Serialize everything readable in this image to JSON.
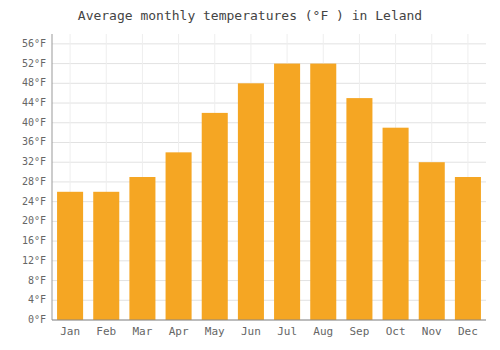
{
  "chart_data": {
    "type": "bar",
    "title": "Average monthly temperatures (°F ) in Leland",
    "categories": [
      "Jan",
      "Feb",
      "Mar",
      "Apr",
      "May",
      "Jun",
      "Jul",
      "Aug",
      "Sep",
      "Oct",
      "Nov",
      "Dec"
    ],
    "values": [
      26,
      26,
      29,
      34,
      42,
      48,
      52,
      52,
      45,
      39,
      32,
      29
    ],
    "color": "#F5A623",
    "ylim": [
      0,
      58
    ],
    "yticks": [
      {
        "value": 0,
        "label": "0°F"
      },
      {
        "value": 4,
        "label": "4°F"
      },
      {
        "value": 8,
        "label": "8°F"
      },
      {
        "value": 12,
        "label": "12°F"
      },
      {
        "value": 16,
        "label": "16°F"
      },
      {
        "value": 20,
        "label": "20°F"
      },
      {
        "value": 24,
        "label": "24°F"
      },
      {
        "value": 28,
        "label": "28°F"
      },
      {
        "value": 32,
        "label": "32°F"
      },
      {
        "value": 36,
        "label": "36°F"
      },
      {
        "value": 40,
        "label": "40°F"
      },
      {
        "value": 44,
        "label": "44°F"
      },
      {
        "value": 48,
        "label": "48°F"
      },
      {
        "value": 52,
        "label": "52°F"
      },
      {
        "value": 56,
        "label": "56°F"
      }
    ],
    "grid": true
  }
}
